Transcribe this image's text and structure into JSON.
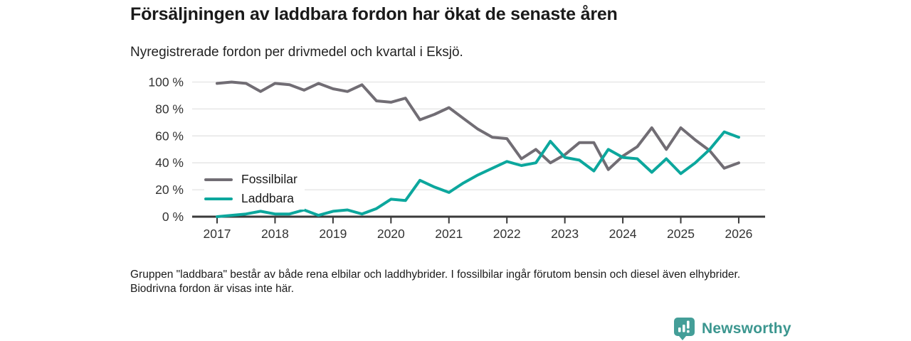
{
  "header": {
    "title": "Försäljningen av laddbara fordon har ökat de senaste åren",
    "subtitle": "Nyregistrerade fordon per drivmedel och kvartal i Eksjö."
  },
  "chart_data": {
    "type": "line",
    "title": "Försäljningen av laddbara fordon har ökat de senaste åren",
    "subtitle": "Nyregistrerade fordon per drivmedel och kvartal i Eksjö.",
    "unit": "percent of newly registered vehicles per quarter",
    "x": [
      "2017Q1",
      "2017Q2",
      "2017Q3",
      "2017Q4",
      "2018Q1",
      "2018Q2",
      "2018Q3",
      "2018Q4",
      "2019Q1",
      "2019Q2",
      "2019Q3",
      "2019Q4",
      "2020Q1",
      "2020Q2",
      "2020Q3",
      "2020Q4",
      "2021Q1",
      "2021Q2",
      "2021Q3",
      "2021Q4",
      "2022Q1",
      "2022Q2",
      "2022Q3",
      "2022Q4",
      "2023Q1",
      "2023Q2",
      "2023Q3",
      "2023Q4",
      "2024Q1",
      "2024Q2",
      "2024Q3",
      "2024Q4",
      "2025Q1",
      "2025Q2",
      "2025Q3",
      "2025Q4",
      "2026Q1"
    ],
    "series": [
      {
        "name": "Fossilbilar",
        "color": "#716d74",
        "values": [
          99,
          100,
          99,
          93,
          99,
          98,
          94,
          99,
          95,
          93,
          98,
          86,
          85,
          88,
          72,
          76,
          81,
          73,
          65,
          59,
          58,
          43,
          50,
          40,
          46,
          55,
          55,
          35,
          45,
          52,
          66,
          50,
          66,
          57,
          49,
          36,
          40
        ]
      },
      {
        "name": "Laddbara",
        "color": "#0ca79d",
        "values": [
          0,
          1,
          2,
          4,
          2,
          2,
          5,
          1,
          4,
          5,
          2,
          6,
          13,
          12,
          27,
          22,
          18,
          25,
          31,
          36,
          41,
          38,
          40,
          56,
          44,
          42,
          34,
          50,
          44,
          43,
          33,
          43,
          32,
          40,
          50,
          63,
          59
        ]
      }
    ],
    "ylim": [
      0,
      100
    ],
    "yticks": [
      0,
      20,
      40,
      60,
      80,
      100
    ],
    "ytick_labels": [
      "0 %",
      "20 %",
      "40 %",
      "60 %",
      "80 %",
      "100 %"
    ],
    "xtick_labels": [
      "2017",
      "2018",
      "2019",
      "2020",
      "2021",
      "2022",
      "2023",
      "2024",
      "2025",
      "2026"
    ],
    "grid": "horizontal",
    "legend_position": "inside-left",
    "axis_color": "#333333",
    "gridline_color": "#e3e3e3"
  },
  "footnote": "Gruppen \"laddbara\" består av både rena elbilar och laddhybrider. I fossilbilar ingår förutom bensin och diesel även elhybrider. Biodrivna fordon är visas inte här.",
  "branding": {
    "logo_text": "Newsworthy",
    "logo_text_color": "#3b968f",
    "icon": "newsworthy-pin-barchart-icon",
    "icon_color": "#449e98"
  }
}
